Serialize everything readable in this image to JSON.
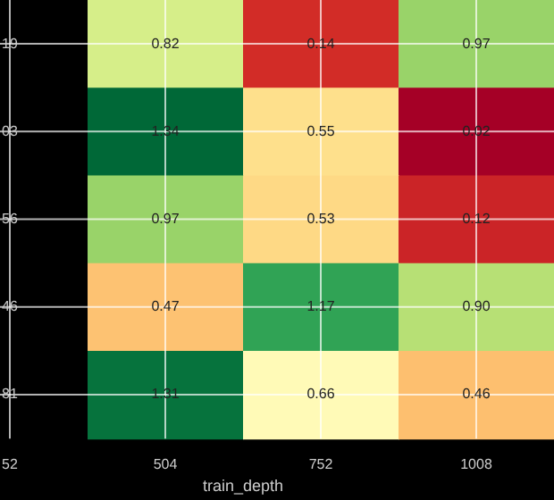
{
  "chart_data": {
    "type": "heatmap",
    "xlabel": "train_depth",
    "categories": [
      "52",
      "504",
      "752",
      "1008"
    ],
    "y_categories": [
      null,
      null,
      null,
      null,
      null
    ],
    "cells": [
      [
        null,
        0.82,
        0.14,
        0.97
      ],
      [
        null,
        1.34,
        0.55,
        0.02
      ],
      [
        null,
        0.97,
        0.53,
        0.12
      ],
      [
        null,
        0.47,
        1.17,
        0.9
      ],
      [
        null,
        1.31,
        0.66,
        0.46
      ]
    ],
    "cell_labels": [
      [
        "19",
        "0.82",
        "0.14",
        "0.97"
      ],
      [
        "03",
        "1.34",
        "0.55",
        "0.02"
      ],
      [
        "56",
        "0.97",
        "0.53",
        "0.12"
      ],
      [
        "46",
        "0.47",
        "1.17",
        "0.90"
      ],
      [
        "81",
        "1.31",
        "0.66",
        "0.46"
      ]
    ],
    "colors": [
      "#a50026",
      "#d73027",
      "#f46d43",
      "#fdae61",
      "#fee08b",
      "#ffffbf",
      "#d9ef8b",
      "#a6d96a",
      "#66bd63",
      "#1a9850",
      "#006837"
    ],
    "grid": true,
    "tick_labels": "x",
    "data_labels": true
  }
}
